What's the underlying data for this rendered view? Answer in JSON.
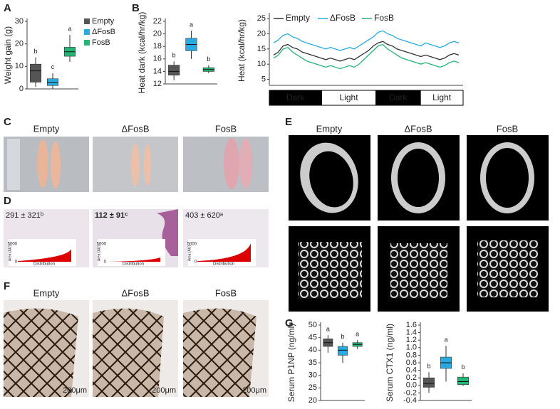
{
  "chart_data": [
    {
      "type": "box",
      "ylabel": "Weight gain (g)",
      "ylim": [
        0,
        30
      ],
      "yticks": [
        0,
        10,
        20,
        30
      ],
      "series": [
        {
          "name": "Empty",
          "color": "#555555",
          "low": 1,
          "q1": 3,
          "median": 8,
          "q3": 11,
          "high": 14,
          "letter": "b"
        },
        {
          "name": "ΔFosB",
          "color": "#29abe2",
          "low": 0,
          "q1": 1.5,
          "median": 3,
          "q3": 4.5,
          "high": 7,
          "letter": "c"
        },
        {
          "name": "FosB",
          "color": "#22b573",
          "low": 12,
          "q1": 14.5,
          "median": 16.5,
          "q3": 18.5,
          "high": 24,
          "letter": "a"
        }
      ]
    },
    {
      "type": "box",
      "ylabel": "Heat dark (kcal/hr/kg)",
      "ylim": [
        12,
        22
      ],
      "yticks": [
        12,
        14,
        16,
        18,
        20,
        22
      ],
      "boxes": [
        {
          "color": "#555555",
          "low": 12.6,
          "q1": 13.4,
          "median": 14,
          "q3": 15,
          "high": 15.6,
          "letter": "b"
        },
        {
          "color": "#29abe2",
          "low": 16,
          "q1": 17.3,
          "median": 18.3,
          "q3": 19.3,
          "high": 20.5,
          "letter": "a"
        },
        {
          "color": "#22b573",
          "low": 13.7,
          "q1": 14,
          "median": 14.3,
          "q3": 14.6,
          "high": 15,
          "letter": "b"
        }
      ]
    },
    {
      "type": "line",
      "ylabel": "Heat (kcal/hr/kg)",
      "ylim": [
        3,
        26
      ],
      "yticks": [
        5,
        10,
        15,
        20,
        25
      ],
      "periods": [
        "Dark",
        "Light",
        "Dark",
        "Light"
      ],
      "series": [
        {
          "name": "Empty",
          "color": "#333333",
          "values": [
            13,
            14,
            16,
            16.5,
            15.5,
            15,
            14,
            13.5,
            13,
            12.5,
            12,
            11.5,
            12,
            11.5,
            11,
            11.5,
            12,
            11.5,
            12.5,
            13.5,
            14.5,
            16,
            17,
            17.5,
            16.5,
            16,
            15,
            14.5,
            14,
            13.5,
            13,
            12.5,
            13,
            12.5,
            12,
            11.5,
            12,
            13,
            13.5,
            13
          ]
        },
        {
          "name": "ΔFosB",
          "color": "#29abe2",
          "values": [
            17,
            18,
            19.5,
            20,
            19,
            18.5,
            17.5,
            17,
            16.5,
            16,
            15.5,
            15,
            15.5,
            15,
            14.5,
            15,
            15.5,
            15,
            16,
            17,
            18,
            19,
            20.5,
            21,
            20,
            19.5,
            18.5,
            18,
            17.5,
            17,
            16.5,
            16,
            17,
            16.5,
            16,
            15.5,
            16,
            17,
            17.5,
            17
          ]
        },
        {
          "name": "FosB",
          "color": "#22b573",
          "values": [
            12,
            13,
            15,
            15.5,
            14,
            13,
            12,
            11,
            10.5,
            10,
            9.5,
            9,
            9.5,
            9,
            8.5,
            9,
            9.5,
            9,
            10,
            11.5,
            13,
            14.5,
            16,
            16.5,
            15,
            14,
            13,
            12,
            11.5,
            11,
            10.5,
            10,
            10.5,
            10,
            9.5,
            9,
            9.5,
            10.5,
            11,
            10.5
          ]
        }
      ]
    },
    {
      "type": "box",
      "ylabel": "Serum P1NP (ng/ml)",
      "ylim": [
        20,
        50
      ],
      "yticks": [
        20,
        25,
        30,
        35,
        40,
        45,
        50
      ],
      "boxes": [
        {
          "color": "#555555",
          "low": 39,
          "q1": 41.5,
          "median": 43,
          "q3": 44.5,
          "high": 46,
          "letter": "a"
        },
        {
          "color": "#29abe2",
          "low": 35,
          "q1": 38,
          "median": 40,
          "q3": 41.5,
          "high": 43,
          "letter": "b"
        },
        {
          "color": "#22b573",
          "low": 40.5,
          "q1": 41.5,
          "median": 42.3,
          "q3": 43,
          "high": 44,
          "letter": "a"
        }
      ]
    },
    {
      "type": "box",
      "ylabel": "Serum CTX1 (ng/ml)",
      "ylim": [
        -0.4,
        1.6
      ],
      "yticks": [
        -0.4,
        -0.2,
        {
          "value": 0,
          "label": "0.0"
        },
        0.2,
        0.4,
        0.6,
        0.8,
        {
          "value": 1,
          "label": "1.0"
        },
        1.2,
        1.4,
        1.6
      ],
      "boxes": [
        {
          "color": "#555555",
          "low": -0.2,
          "q1": -0.05,
          "median": 0.05,
          "q3": 0.2,
          "high": 0.35,
          "letter": "b"
        },
        {
          "color": "#29abe2",
          "low": 0.1,
          "q1": 0.45,
          "median": 0.6,
          "q3": 0.75,
          "high": 1.05,
          "letter": "a"
        },
        {
          "color": "#22b573",
          "low": -0.02,
          "q1": 0.02,
          "median": 0.1,
          "q3": 0.22,
          "high": 0.32,
          "letter": "b"
        }
      ]
    }
  ],
  "panel_labels": [
    "A",
    "B",
    "C",
    "D",
    "E",
    "F",
    "G"
  ],
  "panel_c": {
    "labels": [
      "Empty",
      "ΔFosB",
      "FosB"
    ]
  },
  "panel_d": {
    "annotations": [
      "291 ± 321ᵇ",
      "112 ± 91ᶜ",
      "403 ± 620ᵃ"
    ],
    "inset_top": "5000",
    "inset_bottom": "0",
    "inset_ylabel": "Area (AU)",
    "inset_xlabel": "Distribution"
  },
  "panel_e": {
    "labels": [
      "Empty",
      "ΔFosB",
      "FosB"
    ]
  },
  "panel_f": {
    "labels": [
      "Empty",
      "ΔFosB",
      "FosB"
    ],
    "scale_bar": "200μm"
  }
}
